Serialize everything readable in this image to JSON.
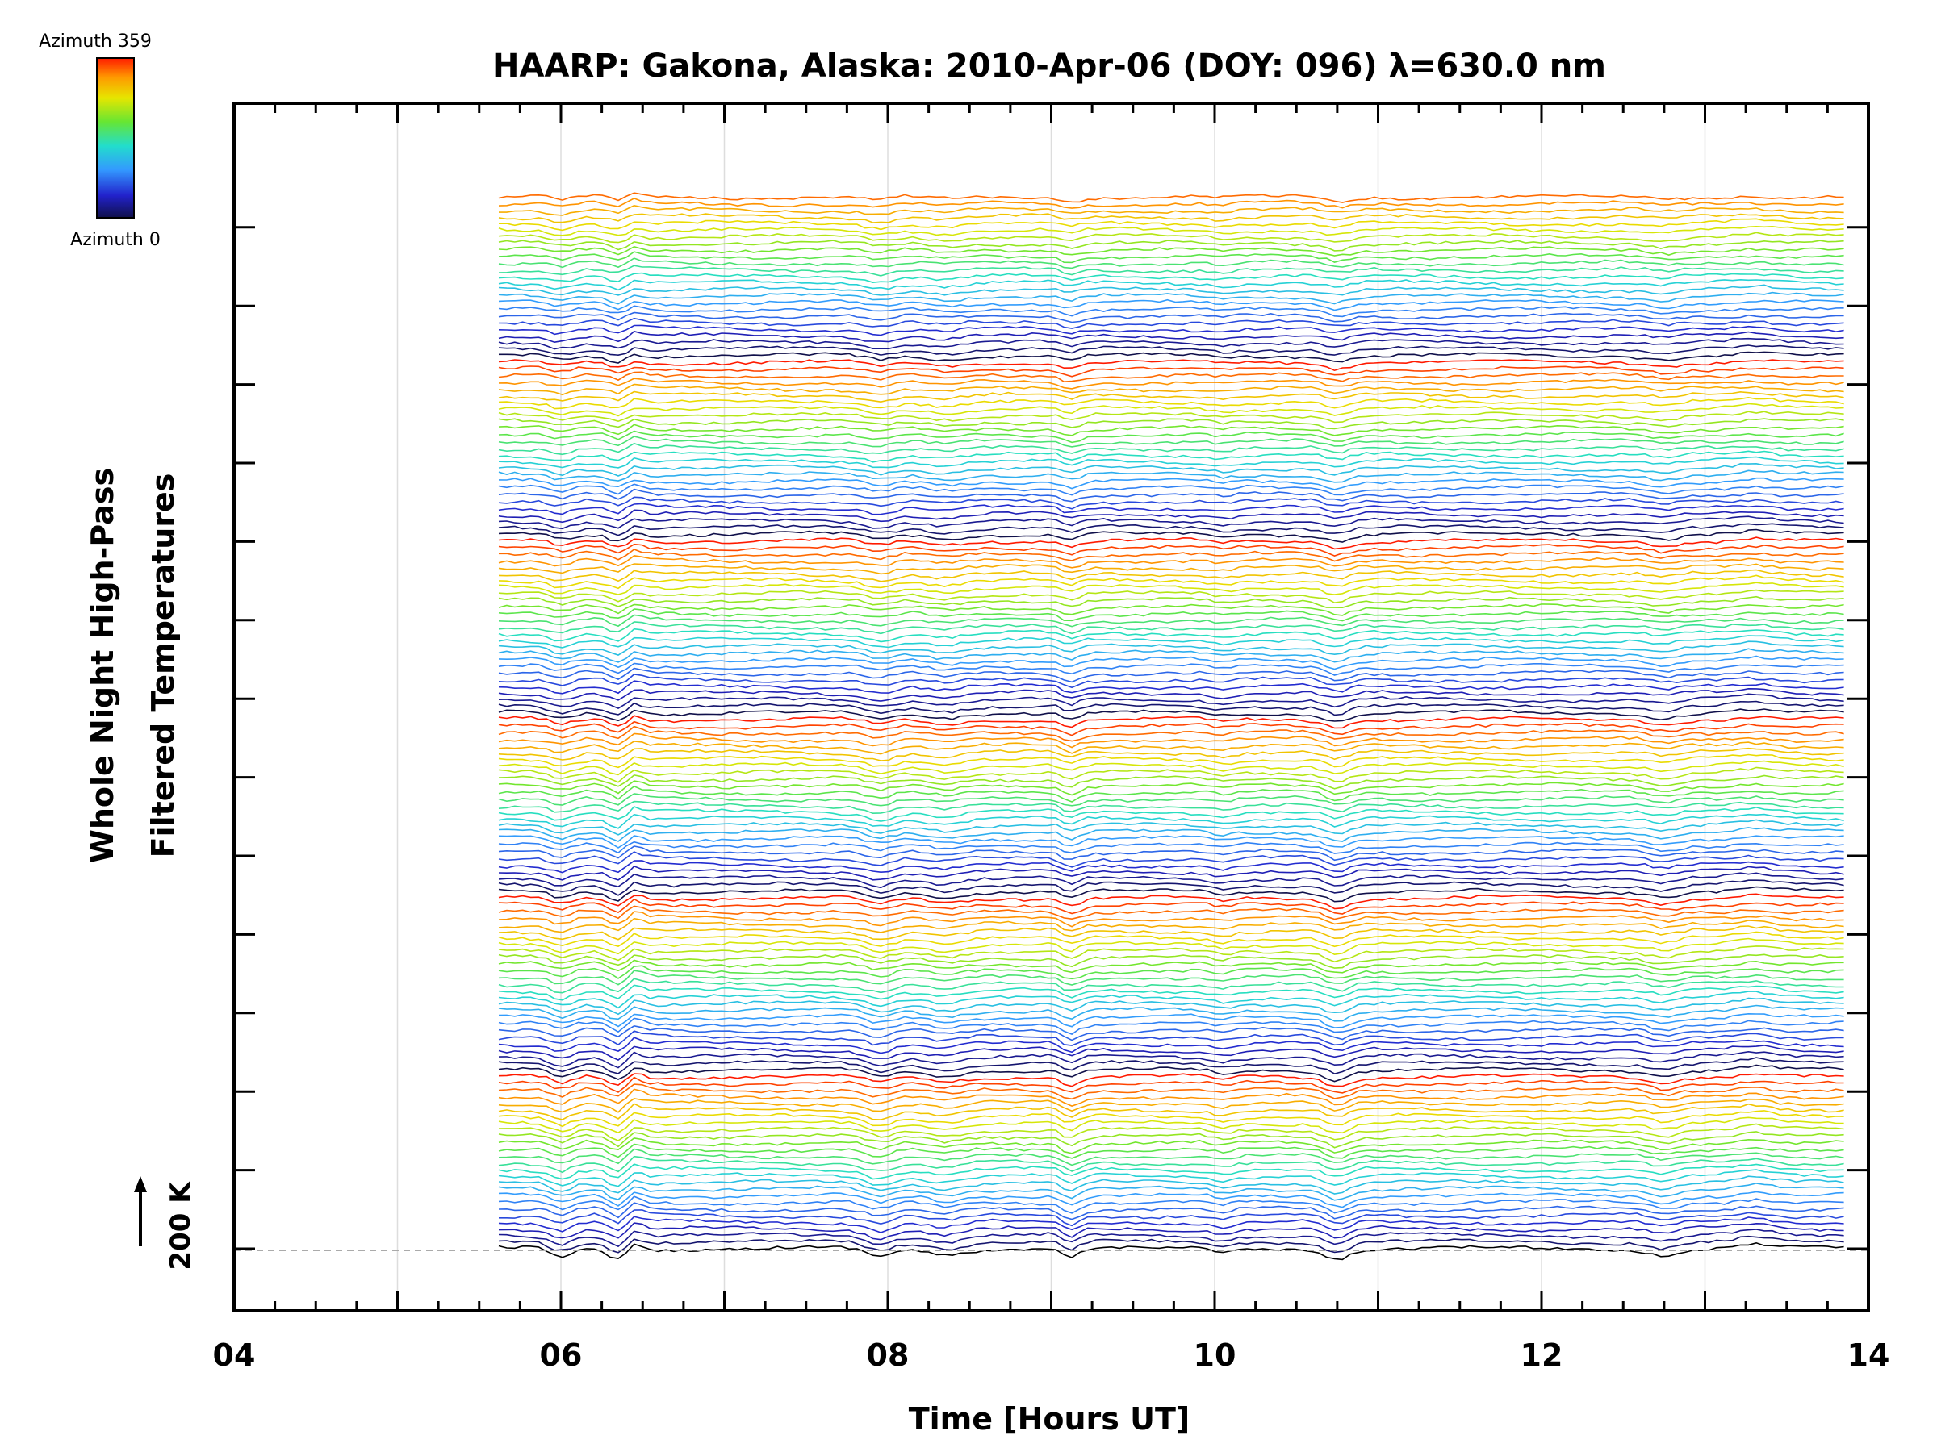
{
  "chart_data": {
    "type": "line",
    "title": "HAARP: Gakona,  Alaska: 2010-Apr-06 (DOY: 096) λ=630.0 nm",
    "xlabel": "Time [Hours UT]",
    "ylabel": [
      "Whole Night High-Pass",
      "Filtered Temperatures"
    ],
    "xlim": [
      4,
      14
    ],
    "x_tick_labels": [
      "04",
      "06",
      "08",
      "10",
      "12",
      "14"
    ],
    "x_major_ticks": [
      4,
      6,
      8,
      10,
      12,
      14
    ],
    "data_start_hour": 5.62,
    "data_end_hour": 13.85,
    "series_count": 160,
    "series_groups": 6,
    "series_color_by": "azimuth",
    "scale_bar": {
      "label": "200 K",
      "value": 200,
      "unit": "K"
    },
    "colorbar": {
      "label_top": "Azimuth 359",
      "label_bottom": "Azimuth 0",
      "colors": [
        "#ff1a00",
        "#ff9900",
        "#e6e600",
        "#66e633",
        "#22ddcc",
        "#3399ff",
        "#2222cc",
        "#10104a"
      ]
    },
    "grid": "vertical at whole hours",
    "baseline_style": "dashed gray"
  }
}
